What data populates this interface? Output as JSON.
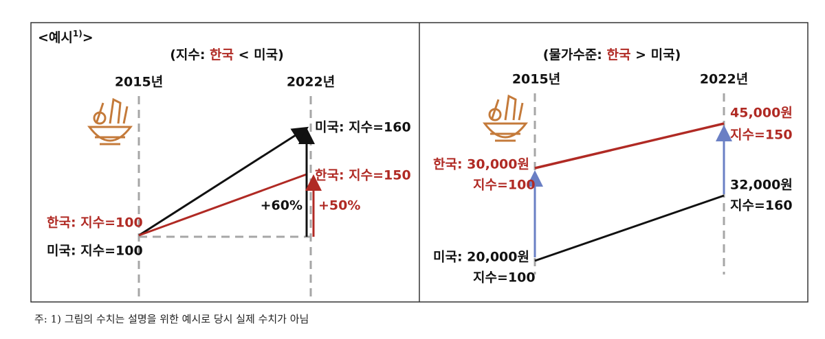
{
  "left": {
    "label": {
      "prefix": "<예시",
      "sup": "1)",
      "suffix": ">"
    },
    "subtitle": {
      "open": "(지수: ",
      "korea": "한국",
      "rest": " < 미국)"
    },
    "year_start": "2015년",
    "year_end": "2022년",
    "us_end": "미국: 지수=160",
    "kr_end": "한국: 지수=150",
    "us_change": "+60%",
    "kr_change": "+50%",
    "kr_start": "한국: 지수=100",
    "us_start": "미국: 지수=100"
  },
  "right": {
    "subtitle": {
      "open": "(물가수준: ",
      "korea": "한국",
      "rest": " > 미국)"
    },
    "year_start": "2015년",
    "year_end": "2022년",
    "kr_start_price": "한국: 30,000원",
    "kr_start_index": "지수=100",
    "us_start_price": "미국: 20,000원",
    "us_start_index": "지수=100",
    "kr_end_price": "45,000원",
    "kr_end_index": "지수=150",
    "us_end_price": "32,000원",
    "us_end_index": "지수=160"
  },
  "footnote": "주: 1) 그림의 수치는 설명을 위한 예시로 당시 실제 수치가 아님"
}
